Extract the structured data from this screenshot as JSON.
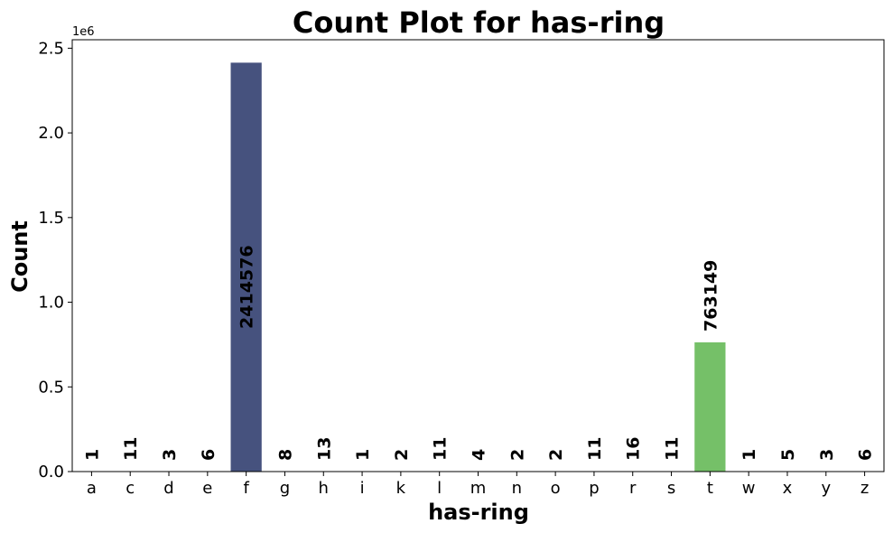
{
  "chart_data": {
    "type": "bar",
    "title": "Count Plot for has-ring",
    "xlabel": "has-ring",
    "ylabel": "Count",
    "y_offset_label": "1e6",
    "y_scale": 1000000,
    "ylim": [
      0,
      2550000
    ],
    "yticks": [
      0.0,
      0.5,
      1.0,
      1.5,
      2.0,
      2.5
    ],
    "ytick_labels": [
      "0.0",
      "0.5",
      "1.0",
      "1.5",
      "2.0",
      "2.5"
    ],
    "categories": [
      "a",
      "c",
      "d",
      "e",
      "f",
      "g",
      "h",
      "i",
      "k",
      "l",
      "m",
      "n",
      "o",
      "p",
      "r",
      "s",
      "t",
      "w",
      "x",
      "y",
      "z"
    ],
    "values": [
      1,
      11,
      3,
      6,
      2414576,
      8,
      13,
      1,
      2,
      11,
      4,
      2,
      2,
      11,
      16,
      11,
      763149,
      1,
      5,
      3,
      6
    ],
    "data_labels": [
      "1",
      "11",
      "3",
      "6",
      "2414576",
      "8",
      "13",
      "1",
      "2",
      "11",
      "4",
      "2",
      "2",
      "11",
      "16",
      "11",
      "763149",
      "1",
      "5",
      "3",
      "6"
    ],
    "bar_colors": {
      "f": "#46527e",
      "t": "#75c068"
    },
    "grid": false
  }
}
